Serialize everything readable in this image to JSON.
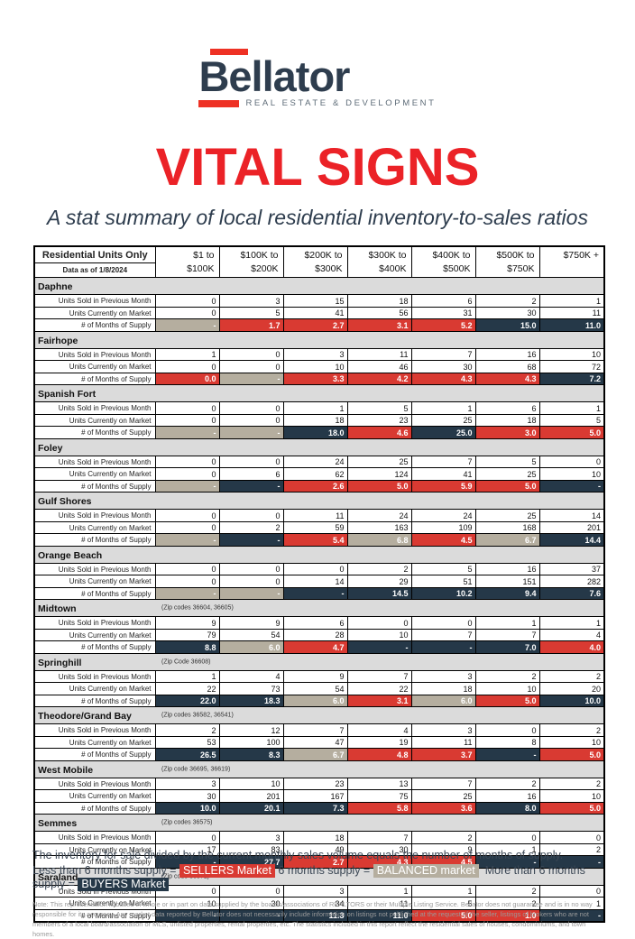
{
  "logo": {
    "brand": "Bellator",
    "tagline": "REAL ESTATE & DEVELOPMENT"
  },
  "title": "VITAL SIGNS",
  "subtitle": "A stat summary of local residential inventory-to-sales ratios",
  "colors": {
    "sellers": "#D93A32",
    "balanced": "#B5AE9F",
    "buyers": "#253848",
    "section_bg": "#DBDBDB",
    "accent_red": "#EE3124",
    "brand_navy": "#2E3D4E"
  },
  "table": {
    "corner": {
      "line1": "Residential Units Only",
      "line2": "Data as of 1/8/2024"
    },
    "columns": [
      {
        "line1": "$1 to",
        "line2": "$100K"
      },
      {
        "line1": "$100K to",
        "line2": "$200K"
      },
      {
        "line1": "$200K to",
        "line2": "$300K"
      },
      {
        "line1": "$300K to",
        "line2": "$400K"
      },
      {
        "line1": "$400K to",
        "line2": "$500K"
      },
      {
        "line1": "$500K to",
        "line2": "$750K"
      },
      {
        "line1": "$750K +",
        "line2": ""
      }
    ],
    "row_labels": {
      "sold": "Units Sold in Previous Month",
      "market": "Units Currently on Market",
      "supply": "# of Months of Supply"
    },
    "sections": [
      {
        "name": "Daphne",
        "zip": "",
        "sold": [
          "0",
          "3",
          "15",
          "18",
          "6",
          "2",
          "1"
        ],
        "market": [
          "0",
          "5",
          "41",
          "56",
          "31",
          "30",
          "11"
        ],
        "supply": [
          {
            "v": "-",
            "t": "balanced"
          },
          {
            "v": "1.7",
            "t": "sellers"
          },
          {
            "v": "2.7",
            "t": "sellers"
          },
          {
            "v": "3.1",
            "t": "sellers"
          },
          {
            "v": "5.2",
            "t": "sellers"
          },
          {
            "v": "15.0",
            "t": "buyers"
          },
          {
            "v": "11.0",
            "t": "buyers"
          }
        ]
      },
      {
        "name": "Fairhope",
        "zip": "",
        "sold": [
          "1",
          "0",
          "3",
          "11",
          "7",
          "16",
          "10"
        ],
        "market": [
          "0",
          "0",
          "10",
          "46",
          "30",
          "68",
          "72"
        ],
        "supply": [
          {
            "v": "0.0",
            "t": "sellers"
          },
          {
            "v": "-",
            "t": "balanced"
          },
          {
            "v": "3.3",
            "t": "sellers"
          },
          {
            "v": "4.2",
            "t": "sellers"
          },
          {
            "v": "4.3",
            "t": "sellers"
          },
          {
            "v": "4.3",
            "t": "sellers"
          },
          {
            "v": "7.2",
            "t": "buyers"
          }
        ]
      },
      {
        "name": "Spanish Fort",
        "zip": "",
        "sold": [
          "0",
          "0",
          "1",
          "5",
          "1",
          "6",
          "1"
        ],
        "market": [
          "0",
          "0",
          "18",
          "23",
          "25",
          "18",
          "5"
        ],
        "supply": [
          {
            "v": "-",
            "t": "balanced"
          },
          {
            "v": "-",
            "t": "balanced"
          },
          {
            "v": "18.0",
            "t": "buyers"
          },
          {
            "v": "4.6",
            "t": "sellers"
          },
          {
            "v": "25.0",
            "t": "buyers"
          },
          {
            "v": "3.0",
            "t": "sellers"
          },
          {
            "v": "5.0",
            "t": "sellers"
          }
        ]
      },
      {
        "name": "Foley",
        "zip": "",
        "sold": [
          "0",
          "0",
          "24",
          "25",
          "7",
          "5",
          "0"
        ],
        "market": [
          "0",
          "6",
          "62",
          "124",
          "41",
          "25",
          "10"
        ],
        "supply": [
          {
            "v": "-",
            "t": "balanced"
          },
          {
            "v": "-",
            "t": "buyers"
          },
          {
            "v": "2.6",
            "t": "sellers"
          },
          {
            "v": "5.0",
            "t": "sellers"
          },
          {
            "v": "5.9",
            "t": "sellers"
          },
          {
            "v": "5.0",
            "t": "sellers"
          },
          {
            "v": "-",
            "t": "buyers"
          }
        ]
      },
      {
        "name": "Gulf Shores",
        "zip": "",
        "sold": [
          "0",
          "0",
          "11",
          "24",
          "24",
          "25",
          "14"
        ],
        "market": [
          "0",
          "2",
          "59",
          "163",
          "109",
          "168",
          "201"
        ],
        "supply": [
          {
            "v": "-",
            "t": "balanced"
          },
          {
            "v": "-",
            "t": "buyers"
          },
          {
            "v": "5.4",
            "t": "sellers"
          },
          {
            "v": "6.8",
            "t": "balanced"
          },
          {
            "v": "4.5",
            "t": "sellers"
          },
          {
            "v": "6.7",
            "t": "balanced"
          },
          {
            "v": "14.4",
            "t": "buyers"
          }
        ]
      },
      {
        "name": "Orange Beach",
        "zip": "",
        "sold": [
          "0",
          "0",
          "0",
          "2",
          "5",
          "16",
          "37"
        ],
        "market": [
          "0",
          "0",
          "14",
          "29",
          "51",
          "151",
          "282"
        ],
        "supply": [
          {
            "v": "-",
            "t": "balanced"
          },
          {
            "v": "-",
            "t": "balanced"
          },
          {
            "v": "-",
            "t": "buyers"
          },
          {
            "v": "14.5",
            "t": "buyers"
          },
          {
            "v": "10.2",
            "t": "buyers"
          },
          {
            "v": "9.4",
            "t": "buyers"
          },
          {
            "v": "7.6",
            "t": "buyers"
          }
        ]
      },
      {
        "name": "Midtown",
        "zip": "(Zip codes 36604, 36605)",
        "sold": [
          "9",
          "9",
          "6",
          "0",
          "0",
          "1",
          "1"
        ],
        "market": [
          "79",
          "54",
          "28",
          "10",
          "7",
          "7",
          "4"
        ],
        "supply": [
          {
            "v": "8.8",
            "t": "buyers"
          },
          {
            "v": "6.0",
            "t": "balanced"
          },
          {
            "v": "4.7",
            "t": "sellers"
          },
          {
            "v": "-",
            "t": "buyers"
          },
          {
            "v": "-",
            "t": "buyers"
          },
          {
            "v": "7.0",
            "t": "buyers"
          },
          {
            "v": "4.0",
            "t": "sellers"
          }
        ]
      },
      {
        "name": "Springhill",
        "zip": "(Zip Code 36608)",
        "sold": [
          "1",
          "4",
          "9",
          "7",
          "3",
          "2",
          "2"
        ],
        "market": [
          "22",
          "73",
          "54",
          "22",
          "18",
          "10",
          "20"
        ],
        "supply": [
          {
            "v": "22.0",
            "t": "buyers"
          },
          {
            "v": "18.3",
            "t": "buyers"
          },
          {
            "v": "6.0",
            "t": "balanced"
          },
          {
            "v": "3.1",
            "t": "sellers"
          },
          {
            "v": "6.0",
            "t": "balanced"
          },
          {
            "v": "5.0",
            "t": "sellers"
          },
          {
            "v": "10.0",
            "t": "buyers"
          }
        ]
      },
      {
        "name": "Theodore/Grand Bay",
        "zip": "(Zip codes 36582, 36541)",
        "sold": [
          "2",
          "12",
          "7",
          "4",
          "3",
          "0",
          "2"
        ],
        "market": [
          "53",
          "100",
          "47",
          "19",
          "11",
          "8",
          "10"
        ],
        "supply": [
          {
            "v": "26.5",
            "t": "buyers"
          },
          {
            "v": "8.3",
            "t": "buyers"
          },
          {
            "v": "6.7",
            "t": "balanced"
          },
          {
            "v": "4.8",
            "t": "sellers"
          },
          {
            "v": "3.7",
            "t": "sellers"
          },
          {
            "v": "-",
            "t": "buyers"
          },
          {
            "v": "5.0",
            "t": "sellers"
          }
        ]
      },
      {
        "name": "West Mobile",
        "zip": "(Zip code 36695, 36619)",
        "sold": [
          "3",
          "10",
          "23",
          "13",
          "7",
          "2",
          "2"
        ],
        "market": [
          "30",
          "201",
          "167",
          "75",
          "25",
          "16",
          "10"
        ],
        "supply": [
          {
            "v": "10.0",
            "t": "buyers"
          },
          {
            "v": "20.1",
            "t": "buyers"
          },
          {
            "v": "7.3",
            "t": "buyers"
          },
          {
            "v": "5.8",
            "t": "sellers"
          },
          {
            "v": "3.6",
            "t": "sellers"
          },
          {
            "v": "8.0",
            "t": "buyers"
          },
          {
            "v": "5.0",
            "t": "sellers"
          }
        ]
      },
      {
        "name": "Semmes",
        "zip": "(Zip codes 36575)",
        "sold": [
          "0",
          "3",
          "18",
          "7",
          "2",
          "0",
          "0"
        ],
        "market": [
          "17",
          "83",
          "49",
          "30",
          "9",
          "1",
          "2"
        ],
        "supply": [
          {
            "v": "-",
            "t": "buyers"
          },
          {
            "v": "27.7",
            "t": "buyers"
          },
          {
            "v": "2.7",
            "t": "sellers"
          },
          {
            "v": "4.3",
            "t": "sellers"
          },
          {
            "v": "4.5",
            "t": "sellers"
          },
          {
            "v": "-",
            "t": "buyers"
          },
          {
            "v": "-",
            "t": "buyers"
          }
        ]
      },
      {
        "name": "Saraland",
        "zip": "(Zip code 36571)",
        "sold": [
          "0",
          "0",
          "3",
          "1",
          "1",
          "2",
          "0"
        ],
        "market": [
          "10",
          "30",
          "34",
          "11",
          "5",
          "2",
          "1"
        ],
        "supply": [
          {
            "v": "-",
            "t": "buyers"
          },
          {
            "v": "-",
            "t": "buyers"
          },
          {
            "v": "11.3",
            "t": "buyers"
          },
          {
            "v": "11.0",
            "t": "buyers"
          },
          {
            "v": "5.0",
            "t": "sellers"
          },
          {
            "v": "1.0",
            "t": "sellers"
          },
          {
            "v": "-",
            "t": "buyers"
          }
        ]
      }
    ]
  },
  "footer": {
    "line1": "The inventory for sale divided by the current monthly sales volume equals the number of months of supply.",
    "legend": [
      {
        "prefix": "Less than 6 months supply =",
        "chip": "SELLERS Market",
        "type": "sellers"
      },
      {
        "prefix": "6 months supply =",
        "chip": "BALANCED market",
        "type": "balanced"
      },
      {
        "prefix": "More than 6 months supply =",
        "chip": "BUYERS Market",
        "type": "buyers"
      }
    ],
    "note": "Note: This representation is based in whole or in part on data supplied by the boards/associations of REALTORS or their Multiple Listing Service. Bellator does not guarantee and is in no way responsible for its accuracy. Any market data reported by Bellator does not necessarily include information on listings not published at the request of the seller, listings of brokers who are not members of a local board/association or MLS, unlisted properties, rental properties, etc. The statistics included in this report reflect the residential sales of houses, condominiums, and town homes."
  }
}
